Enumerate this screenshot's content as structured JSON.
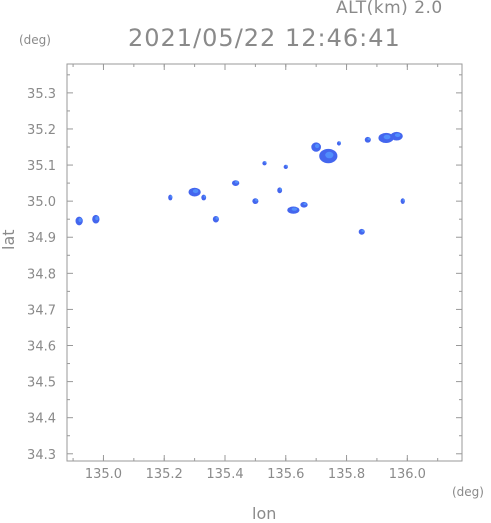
{
  "header": {
    "alt_label": "ALT(km) 2.0",
    "datetime": "2021/05/22 12:46:41"
  },
  "chart_data": {
    "type": "scatter",
    "title": "2021/05/22 12:46:41",
    "xlabel": "lon",
    "ylabel": "lat",
    "x_unit": "(deg)",
    "y_unit": "(deg)",
    "xlim": [
      134.88,
      136.18
    ],
    "ylim": [
      34.28,
      35.38
    ],
    "x_ticks": [
      135.0,
      135.2,
      135.4,
      135.6,
      135.8,
      136.0
    ],
    "x_tick_labels": [
      "135.0",
      "135.2",
      "135.4",
      "135.6",
      "135.8",
      "136.0"
    ],
    "y_ticks": [
      34.3,
      34.4,
      34.5,
      34.6,
      34.7,
      34.8,
      34.9,
      35.0,
      35.1,
      35.2,
      35.3
    ],
    "y_tick_labels": [
      "34.3",
      "34.4",
      "34.5",
      "34.6",
      "34.7",
      "34.8",
      "34.9",
      "35.0",
      "35.1",
      "35.2",
      "35.3"
    ],
    "grid": true,
    "colors": {
      "echo_main": "#4466ee",
      "echo_light": "#5599ff",
      "axis": "#999999"
    },
    "echoes": [
      {
        "lon": 134.92,
        "lat": 34.945,
        "rx": 0.012,
        "ry": 0.012
      },
      {
        "lon": 134.975,
        "lat": 34.95,
        "rx": 0.012,
        "ry": 0.012
      },
      {
        "lon": 135.22,
        "lat": 35.01,
        "rx": 0.007,
        "ry": 0.008
      },
      {
        "lon": 135.3,
        "lat": 35.025,
        "rx": 0.02,
        "ry": 0.012
      },
      {
        "lon": 135.33,
        "lat": 35.01,
        "rx": 0.008,
        "ry": 0.008
      },
      {
        "lon": 135.37,
        "lat": 34.95,
        "rx": 0.01,
        "ry": 0.009
      },
      {
        "lon": 135.435,
        "lat": 35.05,
        "rx": 0.012,
        "ry": 0.008
      },
      {
        "lon": 135.5,
        "lat": 35.0,
        "rx": 0.01,
        "ry": 0.008
      },
      {
        "lon": 135.53,
        "lat": 35.105,
        "rx": 0.007,
        "ry": 0.006
      },
      {
        "lon": 135.6,
        "lat": 35.095,
        "rx": 0.007,
        "ry": 0.006
      },
      {
        "lon": 135.58,
        "lat": 35.03,
        "rx": 0.008,
        "ry": 0.008
      },
      {
        "lon": 135.625,
        "lat": 34.975,
        "rx": 0.02,
        "ry": 0.01
      },
      {
        "lon": 135.66,
        "lat": 34.99,
        "rx": 0.012,
        "ry": 0.008
      },
      {
        "lon": 135.7,
        "lat": 35.15,
        "rx": 0.016,
        "ry": 0.013
      },
      {
        "lon": 135.74,
        "lat": 35.125,
        "rx": 0.03,
        "ry": 0.02
      },
      {
        "lon": 135.775,
        "lat": 35.16,
        "rx": 0.006,
        "ry": 0.006
      },
      {
        "lon": 135.85,
        "lat": 34.915,
        "rx": 0.01,
        "ry": 0.008
      },
      {
        "lon": 135.87,
        "lat": 35.17,
        "rx": 0.01,
        "ry": 0.008
      },
      {
        "lon": 135.93,
        "lat": 35.175,
        "rx": 0.025,
        "ry": 0.014
      },
      {
        "lon": 135.965,
        "lat": 35.18,
        "rx": 0.02,
        "ry": 0.012
      },
      {
        "lon": 135.985,
        "lat": 35.0,
        "rx": 0.007,
        "ry": 0.008
      }
    ]
  }
}
